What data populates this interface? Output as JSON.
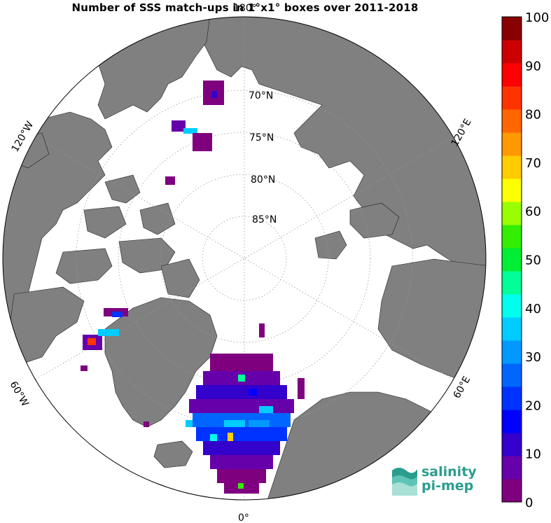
{
  "title": "Number of SSS match-ups in 1°x1° boxes over 2011-2018",
  "map": {
    "projection": "north-polar-stereographic",
    "latitude_labels": [
      "70°N",
      "75°N",
      "80°N",
      "85°N"
    ],
    "longitude_labels": {
      "top": "180°",
      "bottom": "0°",
      "upper_left": "120°W",
      "upper_right": "120°E",
      "lower_left": "60°W",
      "lower_right": "60°E"
    },
    "land_color": "#808080",
    "ocean_color": "#ffffff",
    "grid_style": "dotted"
  },
  "colorbar": {
    "min": 0,
    "max": 100,
    "tick_labels": [
      "100",
      "90",
      "80",
      "70",
      "60",
      "50",
      "40",
      "30",
      "20",
      "10",
      "0"
    ],
    "colors": [
      "#7f007f",
      "#6600aa",
      "#3300cc",
      "#0000ff",
      "#0033ff",
      "#0066ff",
      "#0099ff",
      "#00ccff",
      "#00ffee",
      "#00ff99",
      "#00ee33",
      "#33ee00",
      "#99ff00",
      "#ffff00",
      "#ffcc00",
      "#ff9900",
      "#ff6600",
      "#ff3300",
      "#ff0000",
      "#cc0000",
      "#880000"
    ]
  },
  "logo": {
    "line1": "salinity",
    "line2": "pi-mep",
    "color": "#2a9d8f"
  }
}
